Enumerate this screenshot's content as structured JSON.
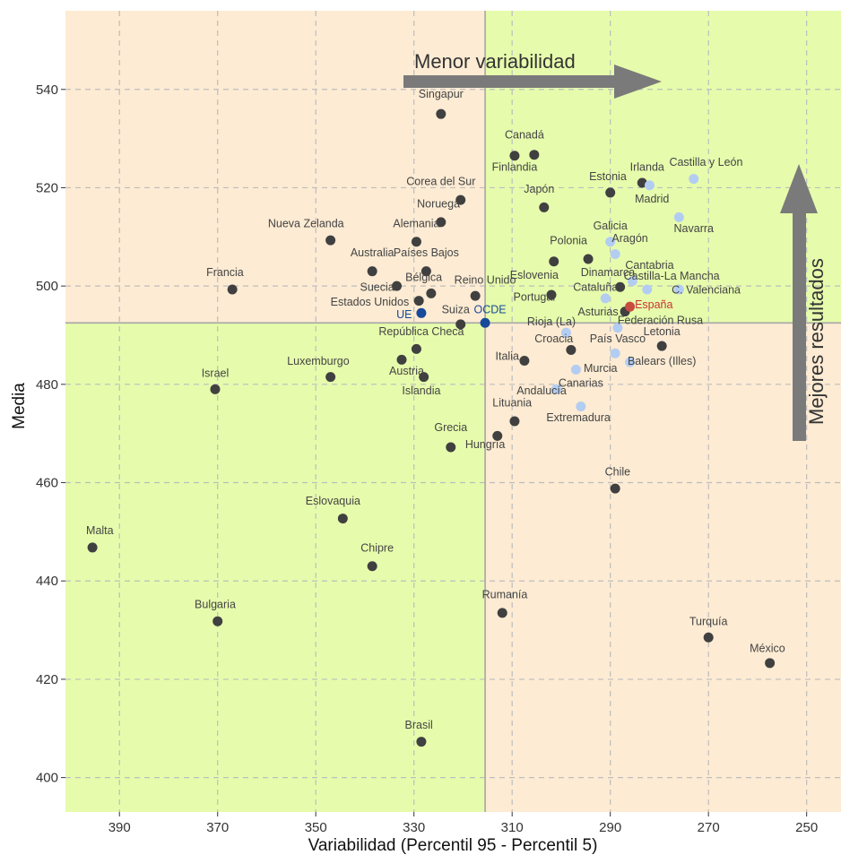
{
  "chart_data": {
    "type": "scatter",
    "title": "",
    "xlabel": "Variabilidad (Percentil 95 - Percentil 5)",
    "ylabel": "Media",
    "x_reversed": true,
    "xlim": [
      401,
      243
    ],
    "ylim": [
      393,
      556
    ],
    "x_ticks": [
      390,
      370,
      350,
      330,
      310,
      290,
      270,
      250
    ],
    "y_ticks": [
      400,
      420,
      440,
      460,
      480,
      500,
      520,
      540
    ],
    "grid": true,
    "reference_lines": {
      "x": 315.5,
      "y": 492.5
    },
    "quadrant_colors": {
      "top_left": "#fdebd3",
      "top_right": "#e6fcac",
      "bottom_left": "#e6fcac",
      "bottom_right": "#fdebd3"
    },
    "colors": {
      "country": "#404040",
      "region": "#b3cdf2",
      "aggregate": "#174a99",
      "highlight": "#c74b3f",
      "highlight_text": "#cc3333"
    },
    "annotations": [
      {
        "text": "Menor variabilidad",
        "direction": "right"
      },
      {
        "text": "Mejores resultados",
        "direction": "up"
      }
    ],
    "points": [
      {
        "label": "Singapur",
        "x": 324.5,
        "y": 535,
        "group": "country",
        "lx": 324.5,
        "ly": 538.3,
        "anchor": "middle"
      },
      {
        "label": "Canadá",
        "x": 309.5,
        "y": 526.5,
        "group": "country",
        "lx": 307.5,
        "ly": 530,
        "anchor": "middle"
      },
      {
        "label": "Finlandia",
        "x": 305.5,
        "y": 526.7,
        "group": "country",
        "lx": 309.5,
        "ly": 523.5,
        "anchor": "middle"
      },
      {
        "label": "Corea del Sur",
        "x": 320.5,
        "y": 517.5,
        "group": "country",
        "lx": 324.5,
        "ly": 520.5,
        "anchor": "middle"
      },
      {
        "label": "Japón",
        "x": 303.5,
        "y": 516,
        "group": "country",
        "lx": 304.5,
        "ly": 519,
        "anchor": "middle"
      },
      {
        "label": "Estonia",
        "x": 290,
        "y": 519,
        "group": "country",
        "lx": 290.5,
        "ly": 521.5,
        "anchor": "middle"
      },
      {
        "label": "Irlanda",
        "x": 283.5,
        "y": 521,
        "group": "country",
        "lx": 282.5,
        "ly": 523.5,
        "anchor": "middle"
      },
      {
        "label": "Noruega",
        "x": 324.5,
        "y": 513,
        "group": "country",
        "lx": 325,
        "ly": 516,
        "anchor": "middle"
      },
      {
        "label": "Alemania",
        "x": 329.5,
        "y": 509,
        "group": "country",
        "lx": 329.5,
        "ly": 512,
        "anchor": "middle"
      },
      {
        "label": "Nueva Zelanda",
        "x": 347,
        "y": 509.3,
        "group": "country",
        "lx": 352,
        "ly": 512,
        "anchor": "middle"
      },
      {
        "label": "Polonia",
        "x": 294.5,
        "y": 505.5,
        "group": "country",
        "lx": 298.5,
        "ly": 508.5,
        "anchor": "middle"
      },
      {
        "label": "Eslovenia",
        "x": 301.5,
        "y": 505,
        "group": "country",
        "lx": 305.5,
        "ly": 501.5,
        "anchor": "middle"
      },
      {
        "label": "Australia",
        "x": 338.5,
        "y": 503,
        "group": "country",
        "lx": 338.5,
        "ly": 506,
        "anchor": "middle"
      },
      {
        "label": "Países Bajos",
        "x": 327.5,
        "y": 503,
        "group": "country",
        "lx": 327.5,
        "ly": 506,
        "anchor": "middle"
      },
      {
        "label": "Suecia",
        "x": 333.5,
        "y": 500,
        "group": "country",
        "lx": 337.5,
        "ly": 499,
        "anchor": "middle"
      },
      {
        "label": "Bélgica",
        "x": 326.5,
        "y": 498.5,
        "group": "country",
        "lx": 328,
        "ly": 501,
        "anchor": "middle"
      },
      {
        "label": "Reino Unido",
        "x": 317.5,
        "y": 498,
        "group": "country",
        "lx": 315.5,
        "ly": 500.5,
        "anchor": "middle"
      },
      {
        "label": "Portugal",
        "x": 302,
        "y": 498.2,
        "group": "country",
        "lx": 305.5,
        "ly": 497,
        "anchor": "middle"
      },
      {
        "label": "Francia",
        "x": 367,
        "y": 499.3,
        "group": "country",
        "lx": 368.5,
        "ly": 502,
        "anchor": "middle"
      },
      {
        "label": "Estados Unidos",
        "x": 329,
        "y": 497,
        "group": "country",
        "lx": 339,
        "ly": 496,
        "anchor": "middle"
      },
      {
        "label": "Dinamarca",
        "x": 288,
        "y": 499.8,
        "group": "country",
        "lx": 290.5,
        "ly": 502,
        "anchor": "middle"
      },
      {
        "label": "UE",
        "x": 328.5,
        "y": 494.5,
        "group": "aggregate",
        "lx": 332,
        "ly": 493.5,
        "anchor": "middle"
      },
      {
        "label": "OCDE",
        "x": 315.5,
        "y": 492.5,
        "group": "aggregate",
        "lx": 314.5,
        "ly": 494.5,
        "anchor": "middle"
      },
      {
        "label": "Suiza",
        "x": 320.5,
        "y": 492.2,
        "group": "country",
        "lx": 321.5,
        "ly": 494.5,
        "anchor": "middle"
      },
      {
        "label": "República Checa",
        "x": 329.5,
        "y": 487.2,
        "group": "country",
        "lx": 328.5,
        "ly": 490,
        "anchor": "middle"
      },
      {
        "label": "Federación Rusa",
        "x": 287,
        "y": 494.8,
        "group": "country",
        "lx": 288.5,
        "ly": 492.3,
        "anchor": "start"
      },
      {
        "label": "Croacia",
        "x": 298,
        "y": 487,
        "group": "country",
        "lx": 301.5,
        "ly": 488.5,
        "anchor": "middle"
      },
      {
        "label": "Letonia",
        "x": 279.5,
        "y": 487.8,
        "group": "country",
        "lx": 279.5,
        "ly": 490,
        "anchor": "middle"
      },
      {
        "label": "Luxemburgo",
        "x": 347,
        "y": 481.5,
        "group": "country",
        "lx": 349.5,
        "ly": 484,
        "anchor": "middle"
      },
      {
        "label": "Austria",
        "x": 332.5,
        "y": 485,
        "group": "country",
        "lx": 331.5,
        "ly": 482,
        "anchor": "middle"
      },
      {
        "label": "Islandia",
        "x": 328,
        "y": 481.5,
        "group": "country",
        "lx": 328.5,
        "ly": 478,
        "anchor": "middle"
      },
      {
        "label": "Italia",
        "x": 307.5,
        "y": 484.8,
        "group": "country",
        "lx": 311,
        "ly": 485,
        "anchor": "middle"
      },
      {
        "label": "Israel",
        "x": 370.5,
        "y": 479,
        "group": "country",
        "lx": 370.5,
        "ly": 481.5,
        "anchor": "middle"
      },
      {
        "label": "Lituania",
        "x": 309.5,
        "y": 472.5,
        "group": "country",
        "lx": 310,
        "ly": 475.5,
        "anchor": "middle"
      },
      {
        "label": "Hungría",
        "x": 313,
        "y": 469.5,
        "group": "country",
        "lx": 315.5,
        "ly": 467,
        "anchor": "middle"
      },
      {
        "label": "Grecia",
        "x": 322.5,
        "y": 467.2,
        "group": "country",
        "lx": 322.5,
        "ly": 470.5,
        "anchor": "middle"
      },
      {
        "label": "Chile",
        "x": 289,
        "y": 458.8,
        "group": "country",
        "lx": 288.5,
        "ly": 461.5,
        "anchor": "middle"
      },
      {
        "label": "Eslovaquia",
        "x": 344.5,
        "y": 452.7,
        "group": "country",
        "lx": 346.5,
        "ly": 455.5,
        "anchor": "middle"
      },
      {
        "label": "Malta",
        "x": 395.5,
        "y": 446.8,
        "group": "country",
        "lx": 394,
        "ly": 449.5,
        "anchor": "middle"
      },
      {
        "label": "Chipre",
        "x": 338.5,
        "y": 443,
        "group": "country",
        "lx": 337.5,
        "ly": 446,
        "anchor": "middle"
      },
      {
        "label": "Rumanía",
        "x": 312,
        "y": 433.5,
        "group": "country",
        "lx": 311.5,
        "ly": 436.5,
        "anchor": "middle"
      },
      {
        "label": "Bulgaria",
        "x": 370,
        "y": 431.8,
        "group": "country",
        "lx": 370.5,
        "ly": 434.5,
        "anchor": "middle"
      },
      {
        "label": "Turquía",
        "x": 270,
        "y": 428.5,
        "group": "country",
        "lx": 270,
        "ly": 431,
        "anchor": "middle"
      },
      {
        "label": "México",
        "x": 257.5,
        "y": 423.3,
        "group": "country",
        "lx": 258,
        "ly": 425.5,
        "anchor": "middle"
      },
      {
        "label": "Brasil",
        "x": 328.5,
        "y": 407.3,
        "group": "country",
        "lx": 329,
        "ly": 410,
        "anchor": "middle"
      },
      {
        "label": "España",
        "x": 286,
        "y": 495.8,
        "group": "highlight",
        "lx": 285,
        "ly": 495.5,
        "anchor": "start"
      },
      {
        "label": "Castilla y León",
        "x": 273,
        "y": 521.8,
        "group": "region",
        "lx": 270.5,
        "ly": 524.5,
        "anchor": "middle"
      },
      {
        "label": "Madrid",
        "x": 282,
        "y": 520.5,
        "group": "region",
        "lx": 281.5,
        "ly": 517,
        "anchor": "middle"
      },
      {
        "label": "Navarra",
        "x": 276,
        "y": 514,
        "group": "region",
        "lx": 273,
        "ly": 511,
        "anchor": "middle"
      },
      {
        "label": "Galicia",
        "x": 290,
        "y": 509,
        "group": "region",
        "lx": 290,
        "ly": 511.5,
        "anchor": "middle"
      },
      {
        "label": "Aragón",
        "x": 289,
        "y": 506.5,
        "group": "region",
        "lx": 286,
        "ly": 509,
        "anchor": "middle"
      },
      {
        "label": "Cantabria",
        "x": 285.5,
        "y": 501,
        "group": "region",
        "lx": 282,
        "ly": 503.5,
        "anchor": "middle"
      },
      {
        "label": "Castilla-La Mancha",
        "x": 282.5,
        "y": 499.3,
        "group": "region",
        "lx": 277.5,
        "ly": 501.3,
        "anchor": "middle"
      },
      {
        "label": "C. Valenciana",
        "x": 276,
        "y": 499.3,
        "group": "region",
        "lx": 277.5,
        "ly": 498.5,
        "anchor": "start"
      },
      {
        "label": "Cataluña",
        "x": 291,
        "y": 497.5,
        "group": "region",
        "lx": 293,
        "ly": 499,
        "anchor": "middle"
      },
      {
        "label": "Asturias",
        "x": 288.5,
        "y": 491.5,
        "group": "region",
        "lx": 292.5,
        "ly": 494,
        "anchor": "middle"
      },
      {
        "label": "Rioja (La)",
        "x": 299,
        "y": 490.5,
        "group": "region",
        "lx": 302,
        "ly": 492,
        "anchor": "middle"
      },
      {
        "label": "País Vasco",
        "x": 289,
        "y": 486.3,
        "group": "region",
        "lx": 288.5,
        "ly": 488.5,
        "anchor": "middle"
      },
      {
        "label": "Murcia",
        "x": 297,
        "y": 483,
        "group": "region",
        "lx": 292,
        "ly": 482.5,
        "anchor": "middle"
      },
      {
        "label": "Balears (Illes)",
        "x": 286,
        "y": 484.5,
        "group": "region",
        "lx": 279.5,
        "ly": 484,
        "anchor": "middle"
      },
      {
        "label": "Canarias",
        "x": 301,
        "y": 479,
        "group": "region",
        "lx": 296,
        "ly": 479.5,
        "anchor": "middle"
      },
      {
        "label": "Andalucía",
        "x": 301,
        "y": 479,
        "group": "region",
        "lx": 304,
        "ly": 478,
        "anchor": "middle"
      },
      {
        "label": "Extremadura",
        "x": 296,
        "y": 475.5,
        "group": "region",
        "lx": 296.5,
        "ly": 472.5,
        "anchor": "middle"
      }
    ]
  }
}
